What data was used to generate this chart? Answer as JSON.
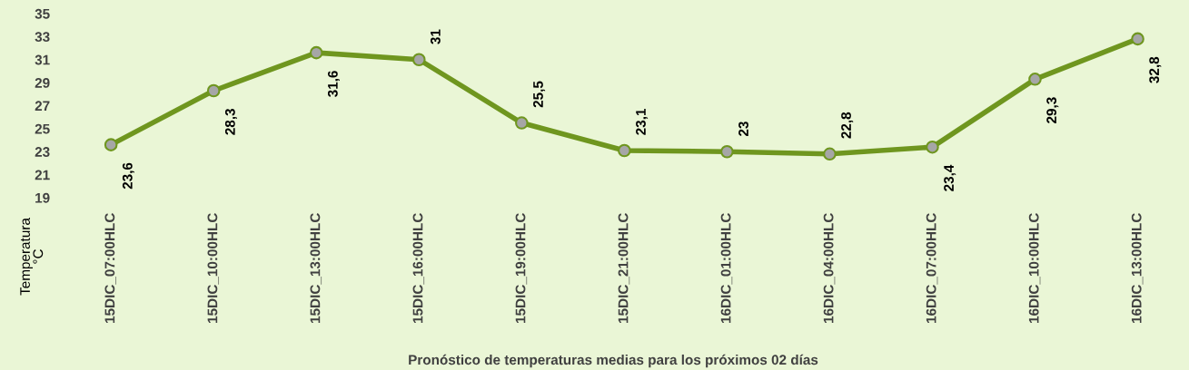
{
  "chart_data": {
    "type": "line",
    "xlabel": "Pronóstico de temperaturas medias para los próximos 02 días",
    "ylabel": "Temperatura\n°C",
    "categories": [
      "15DIC_07:00HLC",
      "15DIC_10:00HLC",
      "15DIC_13:00HLC",
      "15DIC_16:00HLC",
      "15DIC_19:00HLC",
      "15DIC_21:00HLC",
      "16DIC_01:00HLC",
      "16DIC_04:00HLC",
      "16DIC_07:00HLC",
      "16DIC_10:00HLC",
      "16DIC_13:00HLC"
    ],
    "series": [
      {
        "color": "#6f961f",
        "values": [
          23.6,
          28.3,
          31.6,
          31,
          25.5,
          23.1,
          23,
          22.8,
          23.4,
          29.3,
          32.8
        ]
      }
    ],
    "value_labels": [
      "23,6",
      "28,3",
      "31,6",
      "31",
      "25,5",
      "23,1",
      "23",
      "22,8",
      "23,4",
      "29,3",
      "32,8"
    ],
    "ylim": [
      19,
      35
    ],
    "yticks": [
      19,
      21,
      23,
      25,
      27,
      29,
      31,
      33,
      35
    ],
    "marker": "circle",
    "line_style": "solid",
    "grid": false,
    "legend": false
  }
}
